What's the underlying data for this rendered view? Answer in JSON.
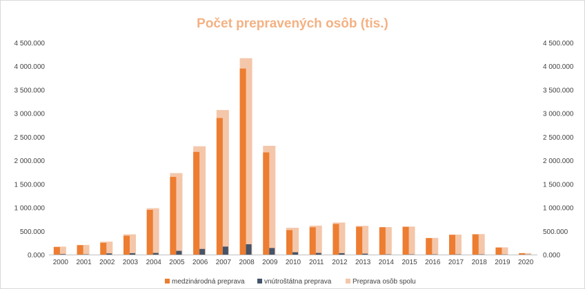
{
  "chart_data": {
    "type": "bar",
    "title": "Počet prepravených osôb (tis.)",
    "categories": [
      "2000",
      "2001",
      "2002",
      "2003",
      "2004",
      "2005",
      "2006",
      "2007",
      "2008",
      "2009",
      "2010",
      "2011",
      "2012",
      "2013",
      "2014",
      "2015",
      "2016",
      "2017",
      "2018",
      "2019",
      "2020"
    ],
    "series": [
      {
        "name": "medzinárodná preprava",
        "color": "#ED7D31",
        "axis": "left",
        "values": [
          160000,
          200000,
          250000,
          400000,
          950000,
          1650000,
          2180000,
          2900000,
          3950000,
          2170000,
          520000,
          580000,
          650000,
          590000,
          580000,
          590000,
          350000,
          420000,
          430000,
          150000,
          30000
        ]
      },
      {
        "name": "vnútroštátna preprava",
        "color": "#44546A",
        "axis": "left",
        "values": [
          10000,
          5000,
          25000,
          30000,
          35000,
          80000,
          120000,
          170000,
          220000,
          140000,
          50000,
          35000,
          30000,
          20000,
          5000,
          5000,
          5000,
          5000,
          5000,
          3000,
          2000
        ]
      },
      {
        "name": "Preprava osôb spolu",
        "color": "#F4C7AA",
        "axis": "right",
        "values": [
          170000,
          205000,
          275000,
          430000,
          985000,
          1730000,
          2300000,
          3070000,
          4170000,
          2310000,
          570000,
          615000,
          680000,
          610000,
          585000,
          595000,
          355000,
          425000,
          435000,
          153000,
          32000
        ]
      }
    ],
    "ylim": [
      0,
      4500000
    ],
    "y_ticks": [
      "0.000",
      "500.000",
      "1 000.000",
      "1 500.000",
      "2 000.000",
      "2 500.000",
      "3 000.000",
      "3 500.000",
      "4 000.000",
      "4 500.000"
    ],
    "y2_ticks": [
      "0.000",
      "500.000",
      "1 000.000",
      "1 500.000",
      "2 000.000",
      "2 500.000",
      "3 000.000",
      "3 500.000",
      "4 000.000",
      "4 500.000"
    ],
    "y2lim": [
      0,
      4500000
    ],
    "grid": false,
    "legend": "bottom",
    "title_color": "#F4B183",
    "tick_color": "#404040",
    "axis_color": "#BFBFBF"
  }
}
